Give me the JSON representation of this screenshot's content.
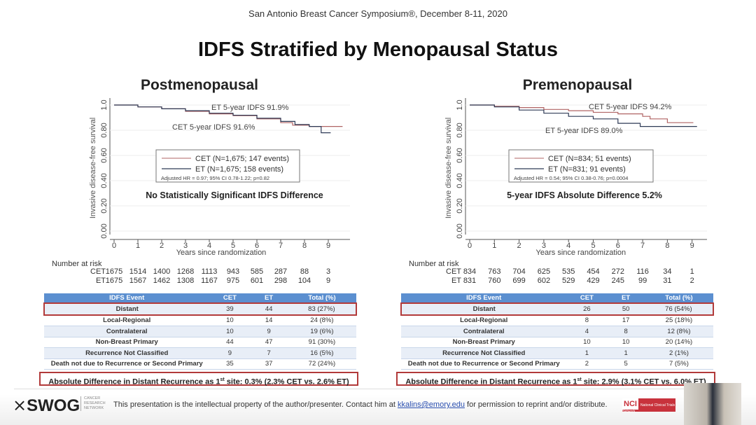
{
  "header": "San Antonio Breast Cancer Symposium®, December 8-11, 2020",
  "title": "IDFS Stratified by Menopausal Status",
  "colors": {
    "cet": "#b06464",
    "et": "#2e3a56",
    "table_header": "#5b8fd0",
    "highlight": "#b23a3a"
  },
  "chart_data": [
    {
      "type": "line",
      "title": "Postmenopausal",
      "xlabel": "Years since randomization",
      "ylabel": "Invasive disease-free survival",
      "xlim": [
        0,
        9.6
      ],
      "ylim": [
        0,
        1
      ],
      "xticks": [
        "0",
        "1",
        "2",
        "3",
        "4",
        "5",
        "6",
        "7",
        "8",
        "9"
      ],
      "yticks": [
        "0.00",
        "0.20",
        "0.40",
        "0.60",
        "0.80",
        "1.0"
      ],
      "annotations": [
        "ET 5-year IDFS 91.9%",
        "CET 5-year IDFS 91.6%"
      ],
      "headline": "No Statistically Significant IDFS Difference",
      "legend": [
        "CET (N=1,675; 147 events)",
        "ET (N=1,675; 158 events)"
      ],
      "legend_note": "Adjusted HR = 0.97; 95% CI 0.78-1.22; p=0.82",
      "series": [
        {
          "name": "CET",
          "points": [
            [
              0,
              1
            ],
            [
              1,
              0.985
            ],
            [
              2,
              0.97
            ],
            [
              3,
              0.95
            ],
            [
              4,
              0.93
            ],
            [
              5,
              0.916
            ],
            [
              6,
              0.89
            ],
            [
              7,
              0.86
            ],
            [
              7.5,
              0.84
            ],
            [
              8.2,
              0.83
            ],
            [
              9.6,
              0.83
            ]
          ]
        },
        {
          "name": "ET",
          "points": [
            [
              0,
              1
            ],
            [
              1,
              0.985
            ],
            [
              2,
              0.97
            ],
            [
              3,
              0.955
            ],
            [
              4,
              0.935
            ],
            [
              5,
              0.919
            ],
            [
              6,
              0.895
            ],
            [
              7,
              0.87
            ],
            [
              7.5,
              0.87
            ],
            [
              7.6,
              0.845
            ],
            [
              8.2,
              0.83
            ],
            [
              8.7,
              0.83
            ],
            [
              8.7,
              0.78
            ],
            [
              9.1,
              0.78
            ]
          ]
        }
      ],
      "risk_label": "Number at risk",
      "risk": [
        {
          "name": "CET",
          "values": [
            "1675",
            "1514",
            "1400",
            "1268",
            "1113",
            "943",
            "585",
            "287",
            "88",
            "3"
          ]
        },
        {
          "name": "ET",
          "values": [
            "1675",
            "1567",
            "1462",
            "1308",
            "1167",
            "975",
            "601",
            "298",
            "104",
            "9"
          ]
        }
      ]
    },
    {
      "type": "line",
      "title": "Premenopausal",
      "xlabel": "Years since randomization",
      "ylabel": "Invasive disease-free survival",
      "xlim": [
        0,
        9.2
      ],
      "ylim": [
        0,
        1
      ],
      "xticks": [
        "0",
        "1",
        "2",
        "3",
        "4",
        "5",
        "6",
        "7",
        "8",
        "9"
      ],
      "yticks": [
        "0.00",
        "0.20",
        "0.40",
        "0.60",
        "0.80",
        "1.0"
      ],
      "annotations": [
        "CET 5-year IDFS 94.2%",
        "ET 5-year IDFS 89.0%"
      ],
      "headline": "5-year IDFS Absolute Difference 5.2%",
      "legend": [
        "CET (N=834; 51 events)",
        "ET (N=831; 91 events)"
      ],
      "legend_note": "Adjusted HR = 0.54; 95% CI 0.38-0.76; p=0.0004",
      "series": [
        {
          "name": "CET",
          "points": [
            [
              0,
              1
            ],
            [
              1,
              0.99
            ],
            [
              2,
              0.98
            ],
            [
              3,
              0.965
            ],
            [
              4,
              0.955
            ],
            [
              5,
              0.942
            ],
            [
              6,
              0.93
            ],
            [
              7,
              0.91
            ],
            [
              7.3,
              0.89
            ],
            [
              8,
              0.89
            ],
            [
              8,
              0.86
            ],
            [
              9.05,
              0.86
            ]
          ]
        },
        {
          "name": "ET",
          "points": [
            [
              0,
              1
            ],
            [
              1,
              0.985
            ],
            [
              2,
              0.96
            ],
            [
              3,
              0.935
            ],
            [
              4,
              0.91
            ],
            [
              5,
              0.89
            ],
            [
              6,
              0.855
            ],
            [
              6.9,
              0.83
            ],
            [
              9.2,
              0.83
            ]
          ]
        }
      ],
      "risk_label": "Number at risk",
      "risk": [
        {
          "name": "CET",
          "values": [
            "834",
            "763",
            "704",
            "625",
            "535",
            "454",
            "272",
            "116",
            "34",
            "1"
          ]
        },
        {
          "name": "ET",
          "values": [
            "831",
            "760",
            "699",
            "602",
            "529",
            "429",
            "245",
            "99",
            "31",
            "2"
          ]
        }
      ]
    }
  ],
  "tables": [
    {
      "headers": [
        "IDFS Event",
        "CET",
        "ET",
        "Total (%)"
      ],
      "rows": [
        [
          "Distant",
          "39",
          "44",
          "83 (27%)"
        ],
        [
          "Local-Regional",
          "10",
          "14",
          "24 (8%)"
        ],
        [
          "Contralateral",
          "10",
          "9",
          "19 (6%)"
        ],
        [
          "Non-Breast Primary",
          "44",
          "47",
          "91 (30%)"
        ],
        [
          "Recurrence Not Classified",
          "9",
          "7",
          "16 (5%)"
        ],
        [
          "Death not due to Recurrence or Second Primary",
          "35",
          "37",
          "72 (24%)"
        ]
      ],
      "summary_pre": "Absolute Difference in Distant Recurrence as 1",
      "summary_sup": "st",
      "summary_post": " site: 0.3% (2.3% CET vs. 2.6% ET)"
    },
    {
      "headers": [
        "IDFS Event",
        "CET",
        "ET",
        "Total (%)"
      ],
      "rows": [
        [
          "Distant",
          "26",
          "50",
          "76 (54%)"
        ],
        [
          "Local-Regional",
          "8",
          "17",
          "25 (18%)"
        ],
        [
          "Contralateral",
          "4",
          "8",
          "12 (8%)"
        ],
        [
          "Non-Breast Primary",
          "10",
          "10",
          "20 (14%)"
        ],
        [
          "Recurrence Not Classified",
          "1",
          "1",
          "2 (1%)"
        ],
        [
          "Death not due to Recurrence or Second Primary",
          "2",
          "5",
          "7 (5%)"
        ]
      ],
      "summary_pre": "Absolute Difference in Distant Recurrence as 1",
      "summary_sup": "st",
      "summary_post": " site: 2.9% (3.1% CET vs. 6.0% ET)"
    }
  ],
  "footer": {
    "logo": "SWOG",
    "logo_sub": "CANCER RESEARCH NETWORK",
    "text_pre": "This presentation is the intellectual property of the author/presenter. Contact him at ",
    "email": "kkalins@emory.edu",
    "text_post": " for permission to reprint and/or distribute.",
    "nci": "NCI",
    "nci_sub": "National Clinical Trials Network"
  }
}
